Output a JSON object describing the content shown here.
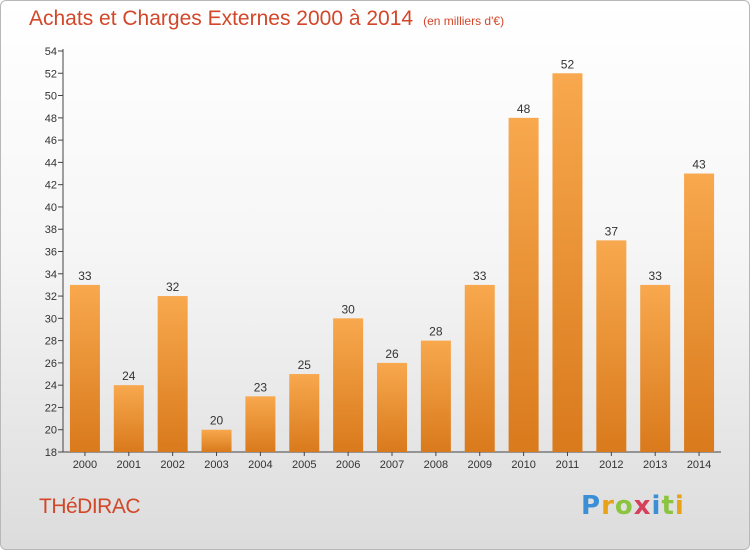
{
  "header": {
    "title": "Achats et Charges Externes 2000 à 2014",
    "unit": "(en milliers d'€)"
  },
  "footer": {
    "commune": "THéDIRAC",
    "logo_letters": [
      "P",
      "r",
      "o",
      "x",
      "i",
      "t",
      "i"
    ],
    "logo_colors": [
      "#3c8fd6",
      "#e8a21a",
      "#8bc53f",
      "#d6405b",
      "#3c8fd6",
      "#8bc53f",
      "#e8a21a"
    ]
  },
  "colors": {
    "bar_top": "#f8a84e",
    "bar_bottom": "#d97a1c",
    "title": "#d2472a"
  },
  "chart_data": {
    "type": "bar",
    "title": "Achats et Charges Externes 2000 à 2014",
    "subtitle": "(en milliers d'€)",
    "categories": [
      "2000",
      "2001",
      "2002",
      "2003",
      "2004",
      "2005",
      "2006",
      "2007",
      "2008",
      "2009",
      "2010",
      "2011",
      "2012",
      "2013",
      "2014"
    ],
    "values": [
      33,
      24,
      32,
      20,
      23,
      25,
      30,
      26,
      28,
      33,
      48,
      52,
      37,
      33,
      43
    ],
    "ylim": [
      18,
      54
    ],
    "yticks": [
      18,
      20,
      22,
      24,
      26,
      28,
      30,
      32,
      34,
      36,
      38,
      40,
      42,
      44,
      46,
      48,
      50,
      52,
      54
    ],
    "grid": false,
    "legend": "none"
  }
}
